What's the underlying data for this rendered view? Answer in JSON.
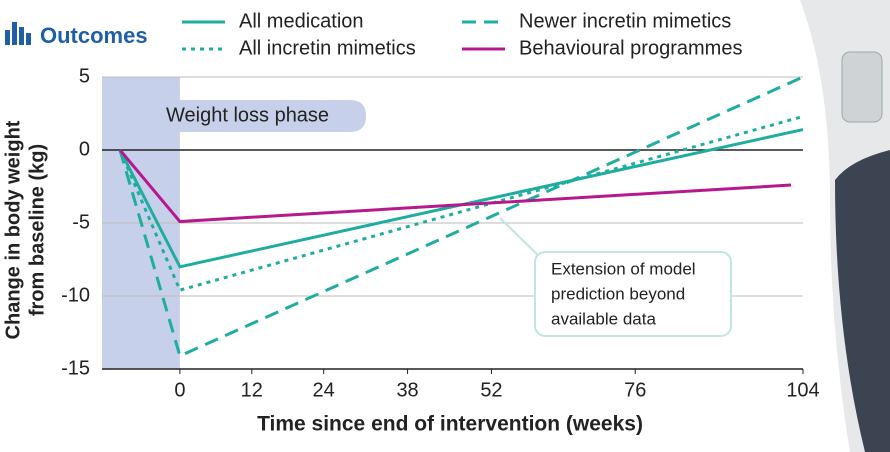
{
  "chart_data": {
    "type": "line",
    "legend_title": "Outcomes",
    "xlabel": "Time since end of intervention (weeks)",
    "ylabel": [
      "Change in body weight",
      "from baseline (kg)"
    ],
    "annotations": [
      "Weight loss phase",
      [
        "Extension of model",
        "prediction beyond",
        "available data"
      ]
    ],
    "xlim": [
      -13,
      104
    ],
    "ylim": [
      -15,
      5
    ],
    "xticks": [
      0,
      12,
      24,
      38,
      52,
      76,
      104
    ],
    "yticks": [
      5,
      0,
      -5,
      -10,
      -15
    ],
    "grid": true,
    "series": [
      {
        "name": "All medication",
        "color": "#1fada0",
        "dash": "solid",
        "x": [
          -10,
          0,
          104
        ],
        "values": [
          0,
          -8.0,
          1.4
        ]
      },
      {
        "name": "Newer incretin mimetics",
        "color": "#1fada0",
        "dash": "dashed",
        "x": [
          -10,
          0,
          104
        ],
        "values": [
          0,
          -14.1,
          5.0
        ]
      },
      {
        "name": "All incretin mimetics",
        "color": "#1fada0",
        "dash": "dotted",
        "x": [
          -10,
          0,
          104
        ],
        "values": [
          0,
          -9.6,
          2.3
        ]
      },
      {
        "name": "Behavioural programmes",
        "color": "#b5198d",
        "dash": "solid",
        "x": [
          -10,
          0,
          102
        ],
        "values": [
          0,
          -4.9,
          -2.4
        ]
      }
    ]
  }
}
